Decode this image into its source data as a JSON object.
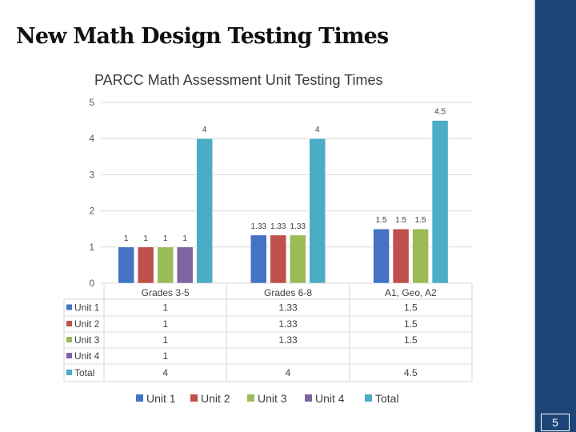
{
  "slide": {
    "title": "New Math Design Testing Times",
    "number": "5"
  },
  "colors": {
    "band": "#1d4476",
    "Unit 1": "#4472c4",
    "Unit 2": "#c0504d",
    "Unit 3": "#9bbb59",
    "Unit 4": "#8064a2",
    "Total": "#4bacc6"
  },
  "chart_data": {
    "type": "bar",
    "title": "PARCC Math Assessment Unit Testing Times",
    "categories": [
      "Grades 3-5",
      "Grades 6-8",
      "A1, Geo, A2"
    ],
    "ylim": [
      0,
      5
    ],
    "yticks": [
      "0",
      "1",
      "2",
      "3",
      "4",
      "5"
    ],
    "grid": true,
    "legend_position": "bottom",
    "data_table": true,
    "series": [
      {
        "name": "Unit 1",
        "values": [
          1,
          1.33,
          1.5
        ],
        "labels": [
          "1",
          "1.33",
          "1.5"
        ]
      },
      {
        "name": "Unit 2",
        "values": [
          1,
          1.33,
          1.5
        ],
        "labels": [
          "1",
          "1.33",
          "1.5"
        ]
      },
      {
        "name": "Unit 3",
        "values": [
          1,
          1.33,
          1.5
        ],
        "labels": [
          "1",
          "1.33",
          "1.5"
        ]
      },
      {
        "name": "Unit 4",
        "values": [
          1,
          null,
          null
        ],
        "labels": [
          "1",
          "",
          ""
        ]
      },
      {
        "name": "Total",
        "values": [
          4,
          4,
          4.5
        ],
        "labels": [
          "4",
          "4",
          "4.5"
        ]
      }
    ]
  }
}
